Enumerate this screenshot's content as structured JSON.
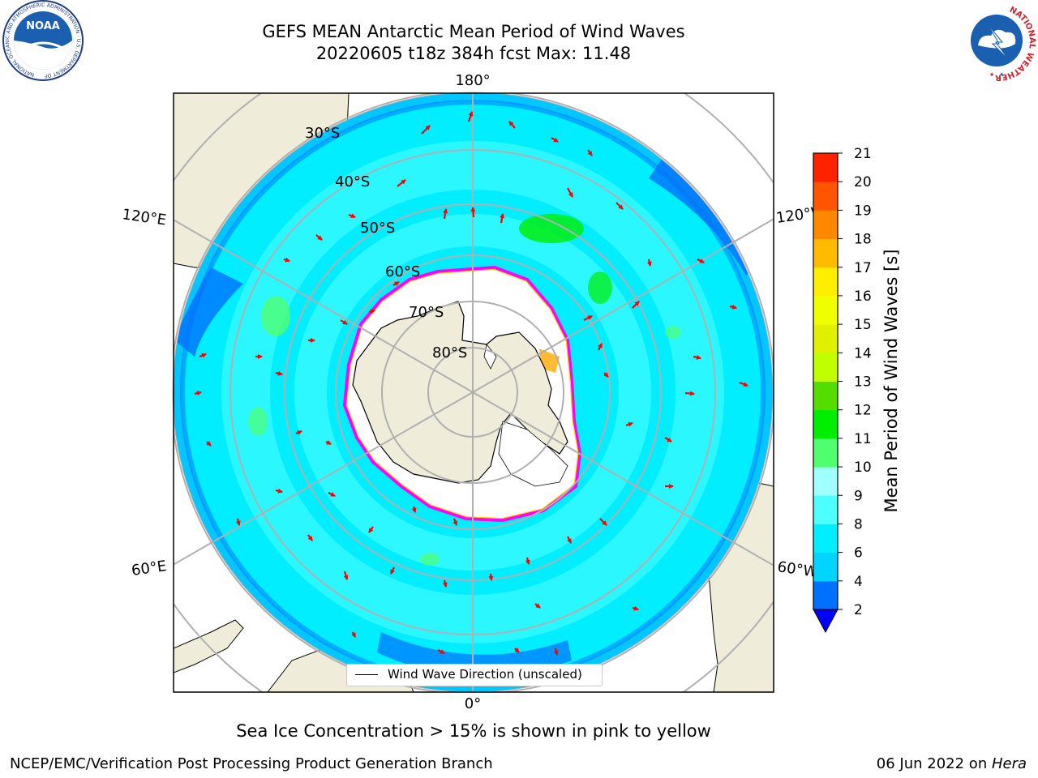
{
  "header": {
    "title_line1": "GEFS MEAN Antarctic Mean Period of Wind Waves",
    "title_line2": "20220605 t18z 384h fcst   Max: 11.48"
  },
  "logos": {
    "left": {
      "name": "NOAA",
      "text": "NOAA",
      "ring_text": "NATIONAL OCEANIC AND ATMOSPHERIC ADMINISTRATION · U.S. DEPARTMENT OF COMMERCE"
    },
    "right": {
      "name": "National Weather Service",
      "ring_text": "NATIONAL WEATHER SERVICE"
    }
  },
  "map": {
    "projection": "south-polar-stereographic",
    "latitude_labels": [
      "30°S",
      "40°S",
      "50°S",
      "60°S",
      "70°S",
      "80°S"
    ],
    "longitude_labels": {
      "top": "180°",
      "bottom": "0°",
      "left_upper": "120°E",
      "left_lower": "60°E",
      "right_upper": "120°W",
      "right_lower": "60°W"
    },
    "legend_label": "Wind Wave Direction (unscaled)",
    "colors": {
      "land": "#efecd9",
      "sea_ice": "#ffffff",
      "ice_edge": [
        "#ff00ff",
        "#ffcc00"
      ],
      "grid": "#b0b0b0",
      "arrows": "#ff0000",
      "coast": "#000000"
    }
  },
  "colorbar": {
    "label": "Mean Period of Wind Waves [s]",
    "ticks": [
      "2",
      "4",
      "6",
      "8",
      "9",
      "10",
      "11",
      "12",
      "13",
      "14",
      "15",
      "16",
      "17",
      "18",
      "19",
      "20",
      "21"
    ],
    "segment_colors": [
      "#0070ff",
      "#00d4ff",
      "#00eeff",
      "#4dffff",
      "#a0ffff",
      "#50ff70",
      "#00ee00",
      "#55dd00",
      "#c0ff00",
      "#e0f000",
      "#f0ff00",
      "#ffee00",
      "#ffbb00",
      "#ff8800",
      "#ff5500",
      "#ff2200"
    ],
    "under_color": "#0000ff",
    "extend": "min"
  },
  "footer": {
    "note": "Sea Ice Concentration > 15% is shown in pink to yellow",
    "credit": "NCEP/EMC/Verification Post Processing Product Generation Branch",
    "date_prefix": "06 Jun 2022 on ",
    "date_machine": "Hera"
  }
}
